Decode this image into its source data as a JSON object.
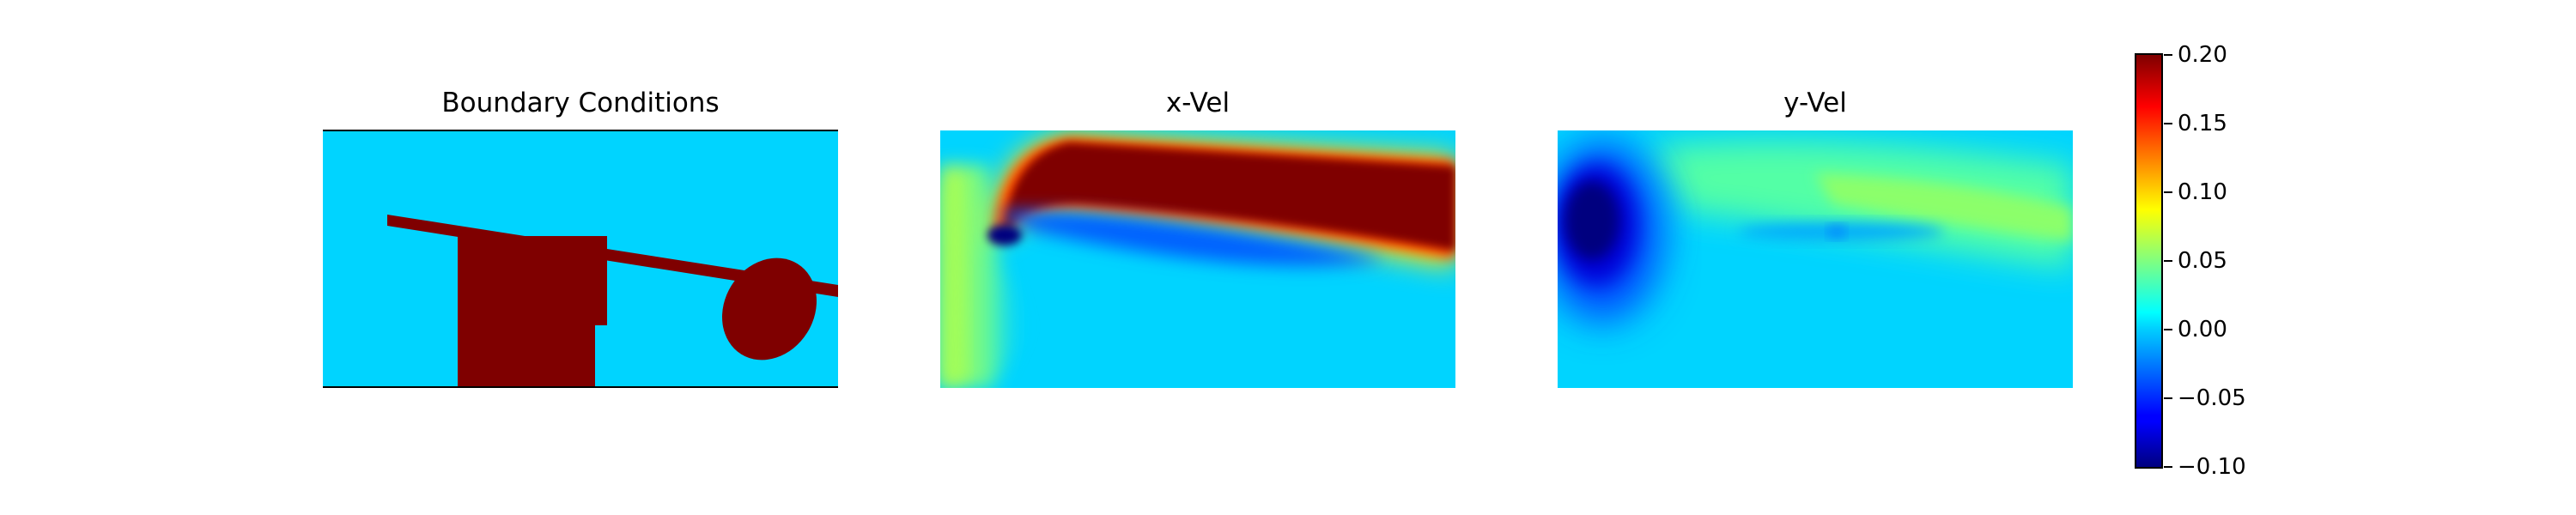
{
  "chart_data": [
    {
      "type": "heatmap",
      "title": "Boundary Conditions",
      "values_shown": "binary mask: fluid ≈ 0.00, obstacle ≈ 0.20",
      "shapes": [
        "plate",
        "block",
        "ellipse"
      ]
    },
    {
      "type": "heatmap",
      "title": "x-Vel",
      "range": [
        -0.1,
        0.2
      ]
    },
    {
      "type": "heatmap",
      "title": "y-Vel",
      "range": [
        -0.1,
        0.2
      ]
    },
    {
      "type": "colorbar",
      "colormap": "jet",
      "ticks": [
        "0.20",
        "0.15",
        "0.10",
        "0.05",
        "0.00",
        "−0.05",
        "−0.10"
      ],
      "range": [
        -0.1,
        0.2
      ]
    }
  ],
  "titles": {
    "bc": "Boundary Conditions",
    "xvel": "x-Vel",
    "yvel": "y-Vel"
  },
  "colors": {
    "fluid": "#00d4ff",
    "solid": "#7f0000",
    "jet_low": "#00007f",
    "jet_high": "#7f0000"
  }
}
